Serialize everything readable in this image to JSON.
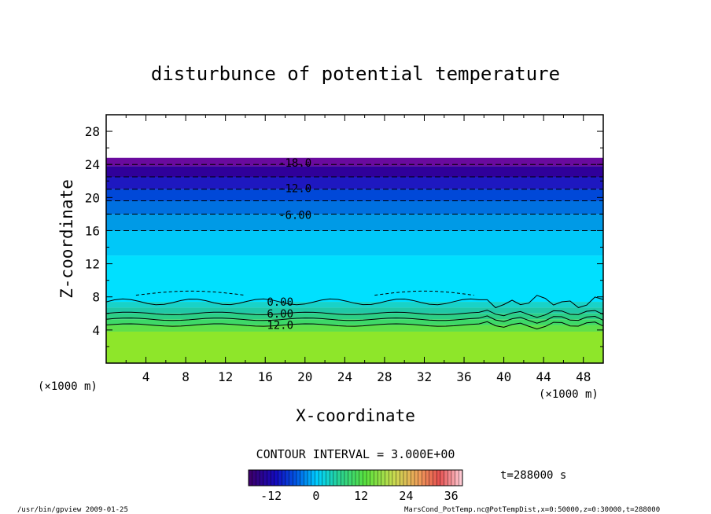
{
  "chart_data": {
    "type": "heatmap",
    "title": "disturbunce of potential temperature",
    "xlabel": "X-coordinate",
    "ylabel": "Z-coordinate",
    "x_unit": "(×1000 m)",
    "y_unit": "(×1000 m)",
    "xlim": [
      0,
      50
    ],
    "ylim": [
      0,
      30
    ],
    "x_ticks": [
      4,
      8,
      12,
      16,
      20,
      24,
      28,
      32,
      36,
      40,
      44,
      48
    ],
    "y_ticks": [
      4,
      8,
      12,
      16,
      20,
      24,
      28
    ],
    "contour_interval_label": "CONTOUR INTERVAL = 3.000E+00",
    "contour_labels": [
      "-18.0",
      "-12.0",
      "-6.00",
      "0.00",
      "6.00",
      "12.0"
    ],
    "colorbar": {
      "min": -18,
      "max": 39,
      "ticks": [
        "-12",
        "0",
        "12",
        "24",
        "36"
      ]
    },
    "time_label": "t=288000 s",
    "bands": [
      {
        "z0": 0.0,
        "z1": 3.8,
        "value": 18,
        "color": "#8ee62a"
      },
      {
        "z0": 3.8,
        "z1": 4.6,
        "value": 15,
        "color": "#5fe04a"
      },
      {
        "z0": 4.6,
        "z1": 5.3,
        "value": 12,
        "color": "#3ed868"
      },
      {
        "z0": 5.3,
        "z1": 6.0,
        "value": 9,
        "color": "#2ccf86"
      },
      {
        "z0": 6.0,
        "z1": 6.7,
        "value": 6,
        "color": "#20c8a6"
      },
      {
        "z0": 6.7,
        "z1": 7.4,
        "value": 3,
        "color": "#18d2c8"
      },
      {
        "z0": 7.4,
        "z1": 13.0,
        "value": 0,
        "color": "#00e0ff"
      },
      {
        "z0": 13.0,
        "z1": 16.0,
        "value": -3,
        "color": "#00c8f8"
      },
      {
        "z0": 16.0,
        "z1": 18.0,
        "value": -6,
        "color": "#009ae6"
      },
      {
        "z0": 18.0,
        "z1": 19.6,
        "value": -9,
        "color": "#0070e0"
      },
      {
        "z0": 19.6,
        "z1": 21.0,
        "value": -12,
        "color": "#0048d8"
      },
      {
        "z0": 21.0,
        "z1": 22.5,
        "value": -15,
        "color": "#1e18c0"
      },
      {
        "z0": 22.5,
        "z1": 23.8,
        "value": -18,
        "color": "#30009a"
      },
      {
        "z0": 23.8,
        "z1": 24.8,
        "value": -21,
        "color": "#6a0a9e"
      }
    ]
  },
  "footer": {
    "left": "/usr/bin/gpview  2009-01-25",
    "right": "MarsCond_PotTemp.nc@PotTempDist,x=0:50000,z=0:30000,t=288000"
  }
}
